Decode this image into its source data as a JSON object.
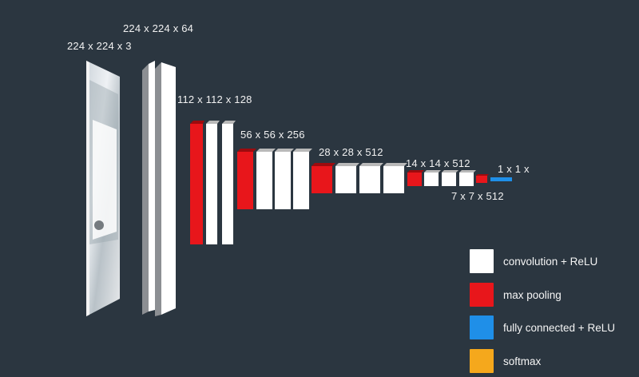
{
  "diagram": {
    "labels": {
      "input": "224 x 224 x 3",
      "conv1": "224 x 224 x 64",
      "conv2": "112 x 112 x 128",
      "conv3": "56 x 56 x 256",
      "conv4": "28 x 28 x 512",
      "conv5": "14 x 14 x 512",
      "pool5": "7 x 7 x 512",
      "fc": "1 x 1 x"
    }
  },
  "legend": {
    "items": [
      {
        "label": "convolution + ReLU",
        "color": "#ffffff"
      },
      {
        "label": "max pooling",
        "color": "#e8161b"
      },
      {
        "label": "fully connected + ReLU",
        "color": "#1f8fe8"
      },
      {
        "label": "softmax",
        "color": "#f5a81c"
      }
    ]
  }
}
